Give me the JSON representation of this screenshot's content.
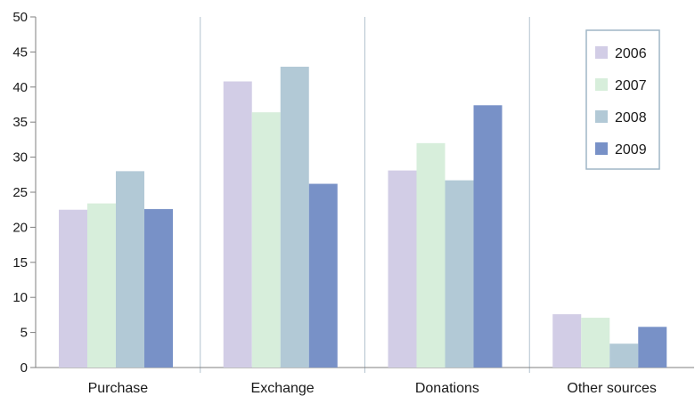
{
  "chart_data": {
    "type": "bar",
    "categories": [
      "Purchase",
      "Exchange",
      "Donations",
      "Other sources"
    ],
    "series": [
      {
        "name": "2006",
        "color": "#d2cde6",
        "values": [
          22.5,
          40.8,
          28.1,
          7.6
        ]
      },
      {
        "name": "2007",
        "color": "#d7eedb",
        "values": [
          23.4,
          36.4,
          32.0,
          7.1
        ]
      },
      {
        "name": "2008",
        "color": "#b2c9d6",
        "values": [
          28.0,
          42.9,
          26.7,
          3.4
        ]
      },
      {
        "name": "2009",
        "color": "#7891c7",
        "values": [
          22.6,
          26.2,
          37.4,
          5.8
        ]
      }
    ],
    "ylim": [
      0,
      50
    ],
    "yticks": [
      0,
      5,
      10,
      15,
      20,
      25,
      30,
      35,
      40,
      45,
      50
    ],
    "grid": "vertical category separators",
    "legend_position": "top-right",
    "colors": {
      "grid": "#b4c3cf",
      "legend_border": "#9fb6c6",
      "axis": "#7f7f7f"
    }
  }
}
